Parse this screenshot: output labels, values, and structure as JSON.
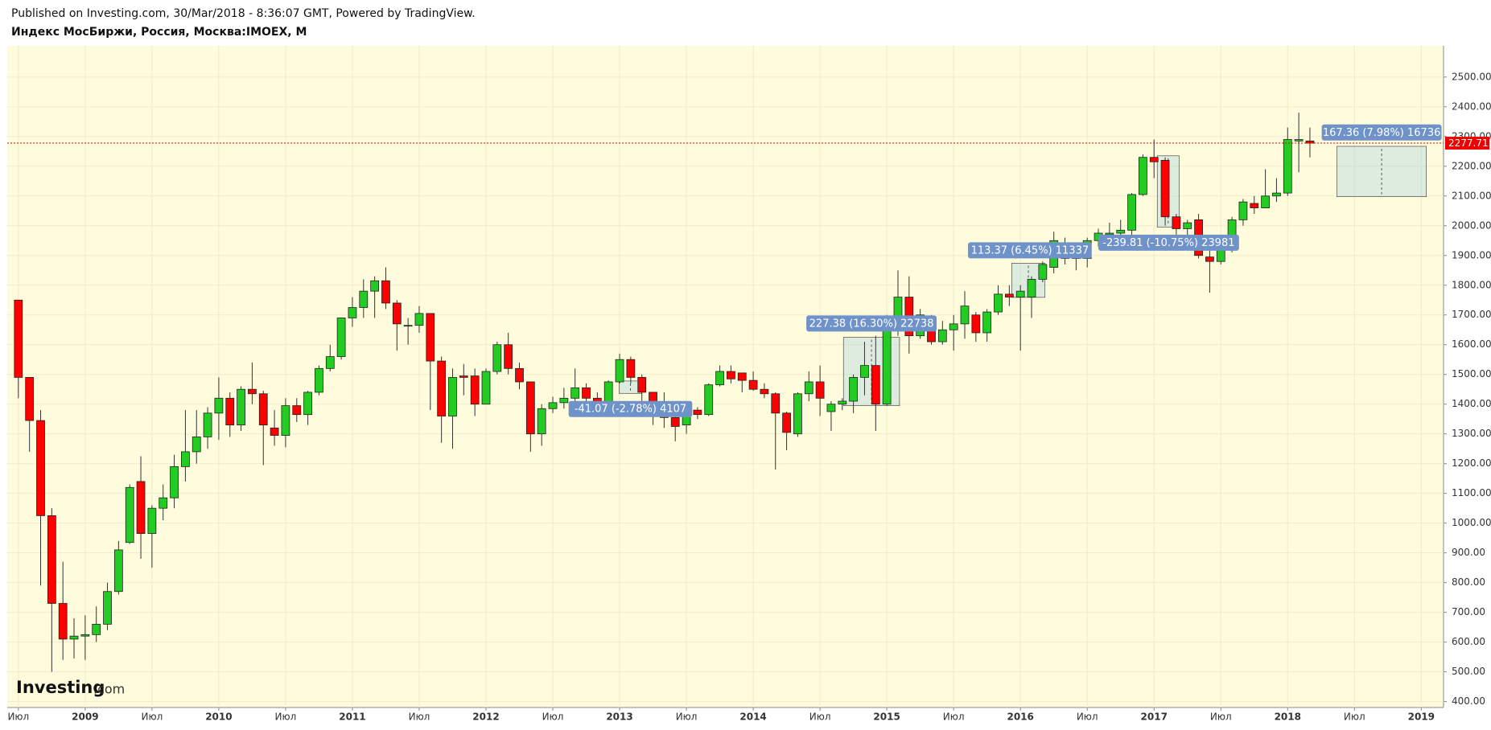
{
  "header": {
    "published": "Published on Investing.com, 30/Mar/2018 - 8:36:07 GMT, Powered by TradingView.",
    "symbol": "Индекс МосБиржи, Россия, Москва:IMOEX, M"
  },
  "logo": {
    "name": "Investing",
    "domain": ".com"
  },
  "chart_data": {
    "type": "candlestick",
    "x": [
      "2008-07",
      "2008-08",
      "2008-09",
      "2008-10",
      "2008-11",
      "2008-12",
      "2009-01",
      "2009-02",
      "2009-03",
      "2009-04",
      "2009-05",
      "2009-06",
      "2009-07",
      "2009-08",
      "2009-09",
      "2009-10",
      "2009-11",
      "2009-12",
      "2010-01",
      "2010-02",
      "2010-03",
      "2010-04",
      "2010-05",
      "2010-06",
      "2010-07",
      "2010-08",
      "2010-09",
      "2010-10",
      "2010-11",
      "2010-12",
      "2011-01",
      "2011-02",
      "2011-03",
      "2011-04",
      "2011-05",
      "2011-06",
      "2011-07",
      "2011-08",
      "2011-09",
      "2011-10",
      "2011-11",
      "2011-12",
      "2012-01",
      "2012-02",
      "2012-03",
      "2012-04",
      "2012-05",
      "2012-06",
      "2012-07",
      "2012-08",
      "2012-09",
      "2012-10",
      "2012-11",
      "2012-12",
      "2013-01",
      "2013-02",
      "2013-03",
      "2013-04",
      "2013-05",
      "2013-06",
      "2013-07",
      "2013-08",
      "2013-09",
      "2013-10",
      "2013-11",
      "2013-12",
      "2014-01",
      "2014-02",
      "2014-03",
      "2014-04",
      "2014-05",
      "2014-06",
      "2014-07",
      "2014-08",
      "2014-09",
      "2014-10",
      "2014-11",
      "2014-12",
      "2015-01",
      "2015-02",
      "2015-03",
      "2015-04",
      "2015-05",
      "2015-06",
      "2015-07",
      "2015-08",
      "2015-09",
      "2015-10",
      "2015-11",
      "2015-12",
      "2016-01",
      "2016-02",
      "2016-03",
      "2016-04",
      "2016-05",
      "2016-06",
      "2016-07",
      "2016-08",
      "2016-09",
      "2016-10",
      "2016-11",
      "2016-12",
      "2017-01",
      "2017-02",
      "2017-03",
      "2017-04",
      "2017-05",
      "2017-06",
      "2017-07",
      "2017-08",
      "2017-09",
      "2017-10",
      "2017-11",
      "2017-12",
      "2018-01",
      "2018-02",
      "2018-03"
    ],
    "open": [
      1750,
      1490,
      1345,
      1025,
      730,
      610,
      620,
      625,
      660,
      770,
      935,
      1140,
      965,
      1050,
      1085,
      1190,
      1240,
      1290,
      1370,
      1420,
      1330,
      1450,
      1435,
      1320,
      1295,
      1395,
      1365,
      1440,
      1520,
      1560,
      1690,
      1725,
      1780,
      1815,
      1740,
      1665,
      1665,
      1705,
      1545,
      1360,
      1495,
      1495,
      1400,
      1510,
      1600,
      1520,
      1475,
      1300,
      1385,
      1405,
      1420,
      1455,
      1420,
      1400,
      1475,
      1550,
      1490,
      1440,
      1395,
      1355,
      1330,
      1380,
      1365,
      1465,
      1510,
      1505,
      1480,
      1450,
      1435,
      1370,
      1300,
      1435,
      1475,
      1375,
      1400,
      1410,
      1490,
      1530,
      1400,
      1680,
      1760,
      1630,
      1690,
      1610,
      1650,
      1670,
      1700,
      1640,
      1710,
      1770,
      1760,
      1760,
      1820,
      1860,
      1930,
      1900,
      1890,
      1950,
      1970,
      1975,
      1985,
      2105,
      2230,
      2220,
      2030,
      1990,
      2020,
      1895,
      1880,
      1920,
      2020,
      2075,
      2060,
      2100,
      2110,
      2285,
      2285
    ],
    "high": [
      1750,
      1490,
      1380,
      1050,
      870,
      680,
      690,
      720,
      800,
      940,
      1130,
      1225,
      1060,
      1130,
      1230,
      1380,
      1380,
      1390,
      1490,
      1440,
      1460,
      1540,
      1445,
      1380,
      1420,
      1420,
      1445,
      1530,
      1600,
      1690,
      1760,
      1820,
      1830,
      1860,
      1750,
      1690,
      1730,
      1705,
      1560,
      1520,
      1535,
      1520,
      1520,
      1610,
      1640,
      1540,
      1475,
      1400,
      1425,
      1455,
      1520,
      1470,
      1440,
      1480,
      1570,
      1560,
      1500,
      1440,
      1440,
      1395,
      1410,
      1390,
      1470,
      1530,
      1530,
      1505,
      1510,
      1470,
      1440,
      1375,
      1440,
      1510,
      1530,
      1410,
      1420,
      1500,
      1610,
      1630,
      1700,
      1850,
      1830,
      1720,
      1700,
      1680,
      1700,
      1780,
      1710,
      1720,
      1800,
      1800,
      1800,
      1830,
      1880,
      1980,
      1960,
      1930,
      1960,
      1990,
      2010,
      2020,
      2110,
      2240,
      2290,
      2230,
      2040,
      2020,
      2040,
      1930,
      1930,
      2030,
      2090,
      2100,
      2190,
      2160,
      2330,
      2380,
      2330
    ],
    "low": [
      1420,
      1240,
      790,
      500,
      540,
      545,
      540,
      600,
      640,
      760,
      930,
      880,
      850,
      1010,
      1050,
      1140,
      1200,
      1250,
      1280,
      1290,
      1310,
      1400,
      1195,
      1260,
      1255,
      1340,
      1330,
      1430,
      1510,
      1550,
      1660,
      1690,
      1690,
      1720,
      1580,
      1600,
      1640,
      1380,
      1270,
      1250,
      1430,
      1360,
      1400,
      1500,
      1500,
      1450,
      1240,
      1260,
      1370,
      1385,
      1400,
      1400,
      1385,
      1400,
      1470,
      1470,
      1400,
      1330,
      1320,
      1275,
      1300,
      1350,
      1360,
      1460,
      1470,
      1440,
      1445,
      1420,
      1180,
      1245,
      1290,
      1410,
      1360,
      1310,
      1380,
      1370,
      1430,
      1310,
      1395,
      1630,
      1570,
      1620,
      1600,
      1600,
      1580,
      1620,
      1610,
      1610,
      1700,
      1730,
      1580,
      1690,
      1810,
      1840,
      1870,
      1850,
      1860,
      1930,
      1950,
      1950,
      1970,
      2100,
      2160,
      2000,
      1970,
      1950,
      1890,
      1775,
      1870,
      1910,
      2000,
      2040,
      2060,
      2080,
      2100,
      2180,
      2230
    ],
    "close": [
      1490,
      1345,
      1025,
      730,
      610,
      620,
      625,
      660,
      770,
      910,
      1120,
      965,
      1050,
      1085,
      1190,
      1240,
      1290,
      1370,
      1420,
      1330,
      1450,
      1435,
      1330,
      1295,
      1395,
      1365,
      1440,
      1520,
      1560,
      1690,
      1725,
      1780,
      1815,
      1740,
      1670,
      1665,
      1705,
      1545,
      1360,
      1490,
      1490,
      1400,
      1510,
      1600,
      1520,
      1475,
      1300,
      1385,
      1405,
      1420,
      1455,
      1420,
      1400,
      1475,
      1550,
      1490,
      1440,
      1395,
      1355,
      1325,
      1380,
      1365,
      1465,
      1510,
      1485,
      1480,
      1450,
      1435,
      1370,
      1305,
      1435,
      1475,
      1420,
      1400,
      1410,
      1490,
      1530,
      1400,
      1680,
      1760,
      1630,
      1700,
      1610,
      1650,
      1670,
      1730,
      1640,
      1710,
      1770,
      1760,
      1780,
      1820,
      1870,
      1950,
      1890,
      1890,
      1950,
      1975,
      1975,
      1985,
      2105,
      2230,
      2215,
      2030,
      1990,
      2010,
      1900,
      1880,
      1920,
      2020,
      2080,
      2060,
      2100,
      2110,
      2290,
      2290,
      2277.71
    ],
    "up_color": "#22cc22",
    "down_color": "#ff0000",
    "xlim": [
      "2008-06",
      "2019-03"
    ],
    "xticks": [
      {
        "value": "2008-07",
        "label": "Июл"
      },
      {
        "value": "2009-01",
        "label": "2009"
      },
      {
        "value": "2009-07",
        "label": "Июл"
      },
      {
        "value": "2010-01",
        "label": "2010"
      },
      {
        "value": "2010-07",
        "label": "Июл"
      },
      {
        "value": "2011-01",
        "label": "2011"
      },
      {
        "value": "2011-07",
        "label": "Июл"
      },
      {
        "value": "2012-01",
        "label": "2012"
      },
      {
        "value": "2012-07",
        "label": "Июл"
      },
      {
        "value": "2013-01",
        "label": "2013"
      },
      {
        "value": "2013-07",
        "label": "Июл"
      },
      {
        "value": "2014-01",
        "label": "2014"
      },
      {
        "value": "2014-07",
        "label": "Июл"
      },
      {
        "value": "2015-01",
        "label": "2015"
      },
      {
        "value": "2015-07",
        "label": "Июл"
      },
      {
        "value": "2016-01",
        "label": "2016"
      },
      {
        "value": "2016-07",
        "label": "Июл"
      },
      {
        "value": "2017-01",
        "label": "2017"
      },
      {
        "value": "2017-07",
        "label": "Июл"
      },
      {
        "value": "2018-01",
        "label": "2018"
      },
      {
        "value": "2018-07",
        "label": "Июл"
      },
      {
        "value": "2019-01",
        "label": "2019"
      }
    ],
    "ylim": [
      380,
      2605
    ],
    "yticks": [
      {
        "value": 400,
        "label": "400.00"
      },
      {
        "value": 500,
        "label": "500.00"
      },
      {
        "value": 600,
        "label": "600.00"
      },
      {
        "value": 700,
        "label": "700.00"
      },
      {
        "value": 800,
        "label": "800.00"
      },
      {
        "value": 900,
        "label": "900.00"
      },
      {
        "value": 1000,
        "label": "1000.00"
      },
      {
        "value": 1100,
        "label": "1100.00"
      },
      {
        "value": 1200,
        "label": "1200.00"
      },
      {
        "value": 1300,
        "label": "1300.00"
      },
      {
        "value": 1400,
        "label": "1400.00"
      },
      {
        "value": 1500,
        "label": "1500.00"
      },
      {
        "value": 1600,
        "label": "1600.00"
      },
      {
        "value": 1700,
        "label": "1700.00"
      },
      {
        "value": 1800,
        "label": "1800.00"
      },
      {
        "value": 1900,
        "label": "1900.00"
      },
      {
        "value": 2000,
        "label": "2000.00"
      },
      {
        "value": 2100,
        "label": "2100.00"
      },
      {
        "value": 2200,
        "label": "2200.00"
      },
      {
        "value": 2300,
        "label": "2300.00"
      },
      {
        "value": 2400,
        "label": "2400.00"
      },
      {
        "value": 2500,
        "label": "2500.00"
      }
    ],
    "grid": true,
    "last_price": 2277.71,
    "annotations": [
      "-41.07 (-2.78%) 4107",
      "227.38 (16.30%) 22738",
      "113.37 (6.45%) 11337",
      "-239.81 (-10.75%) 23981",
      "167.36 (7.98%) 16736"
    ]
  }
}
